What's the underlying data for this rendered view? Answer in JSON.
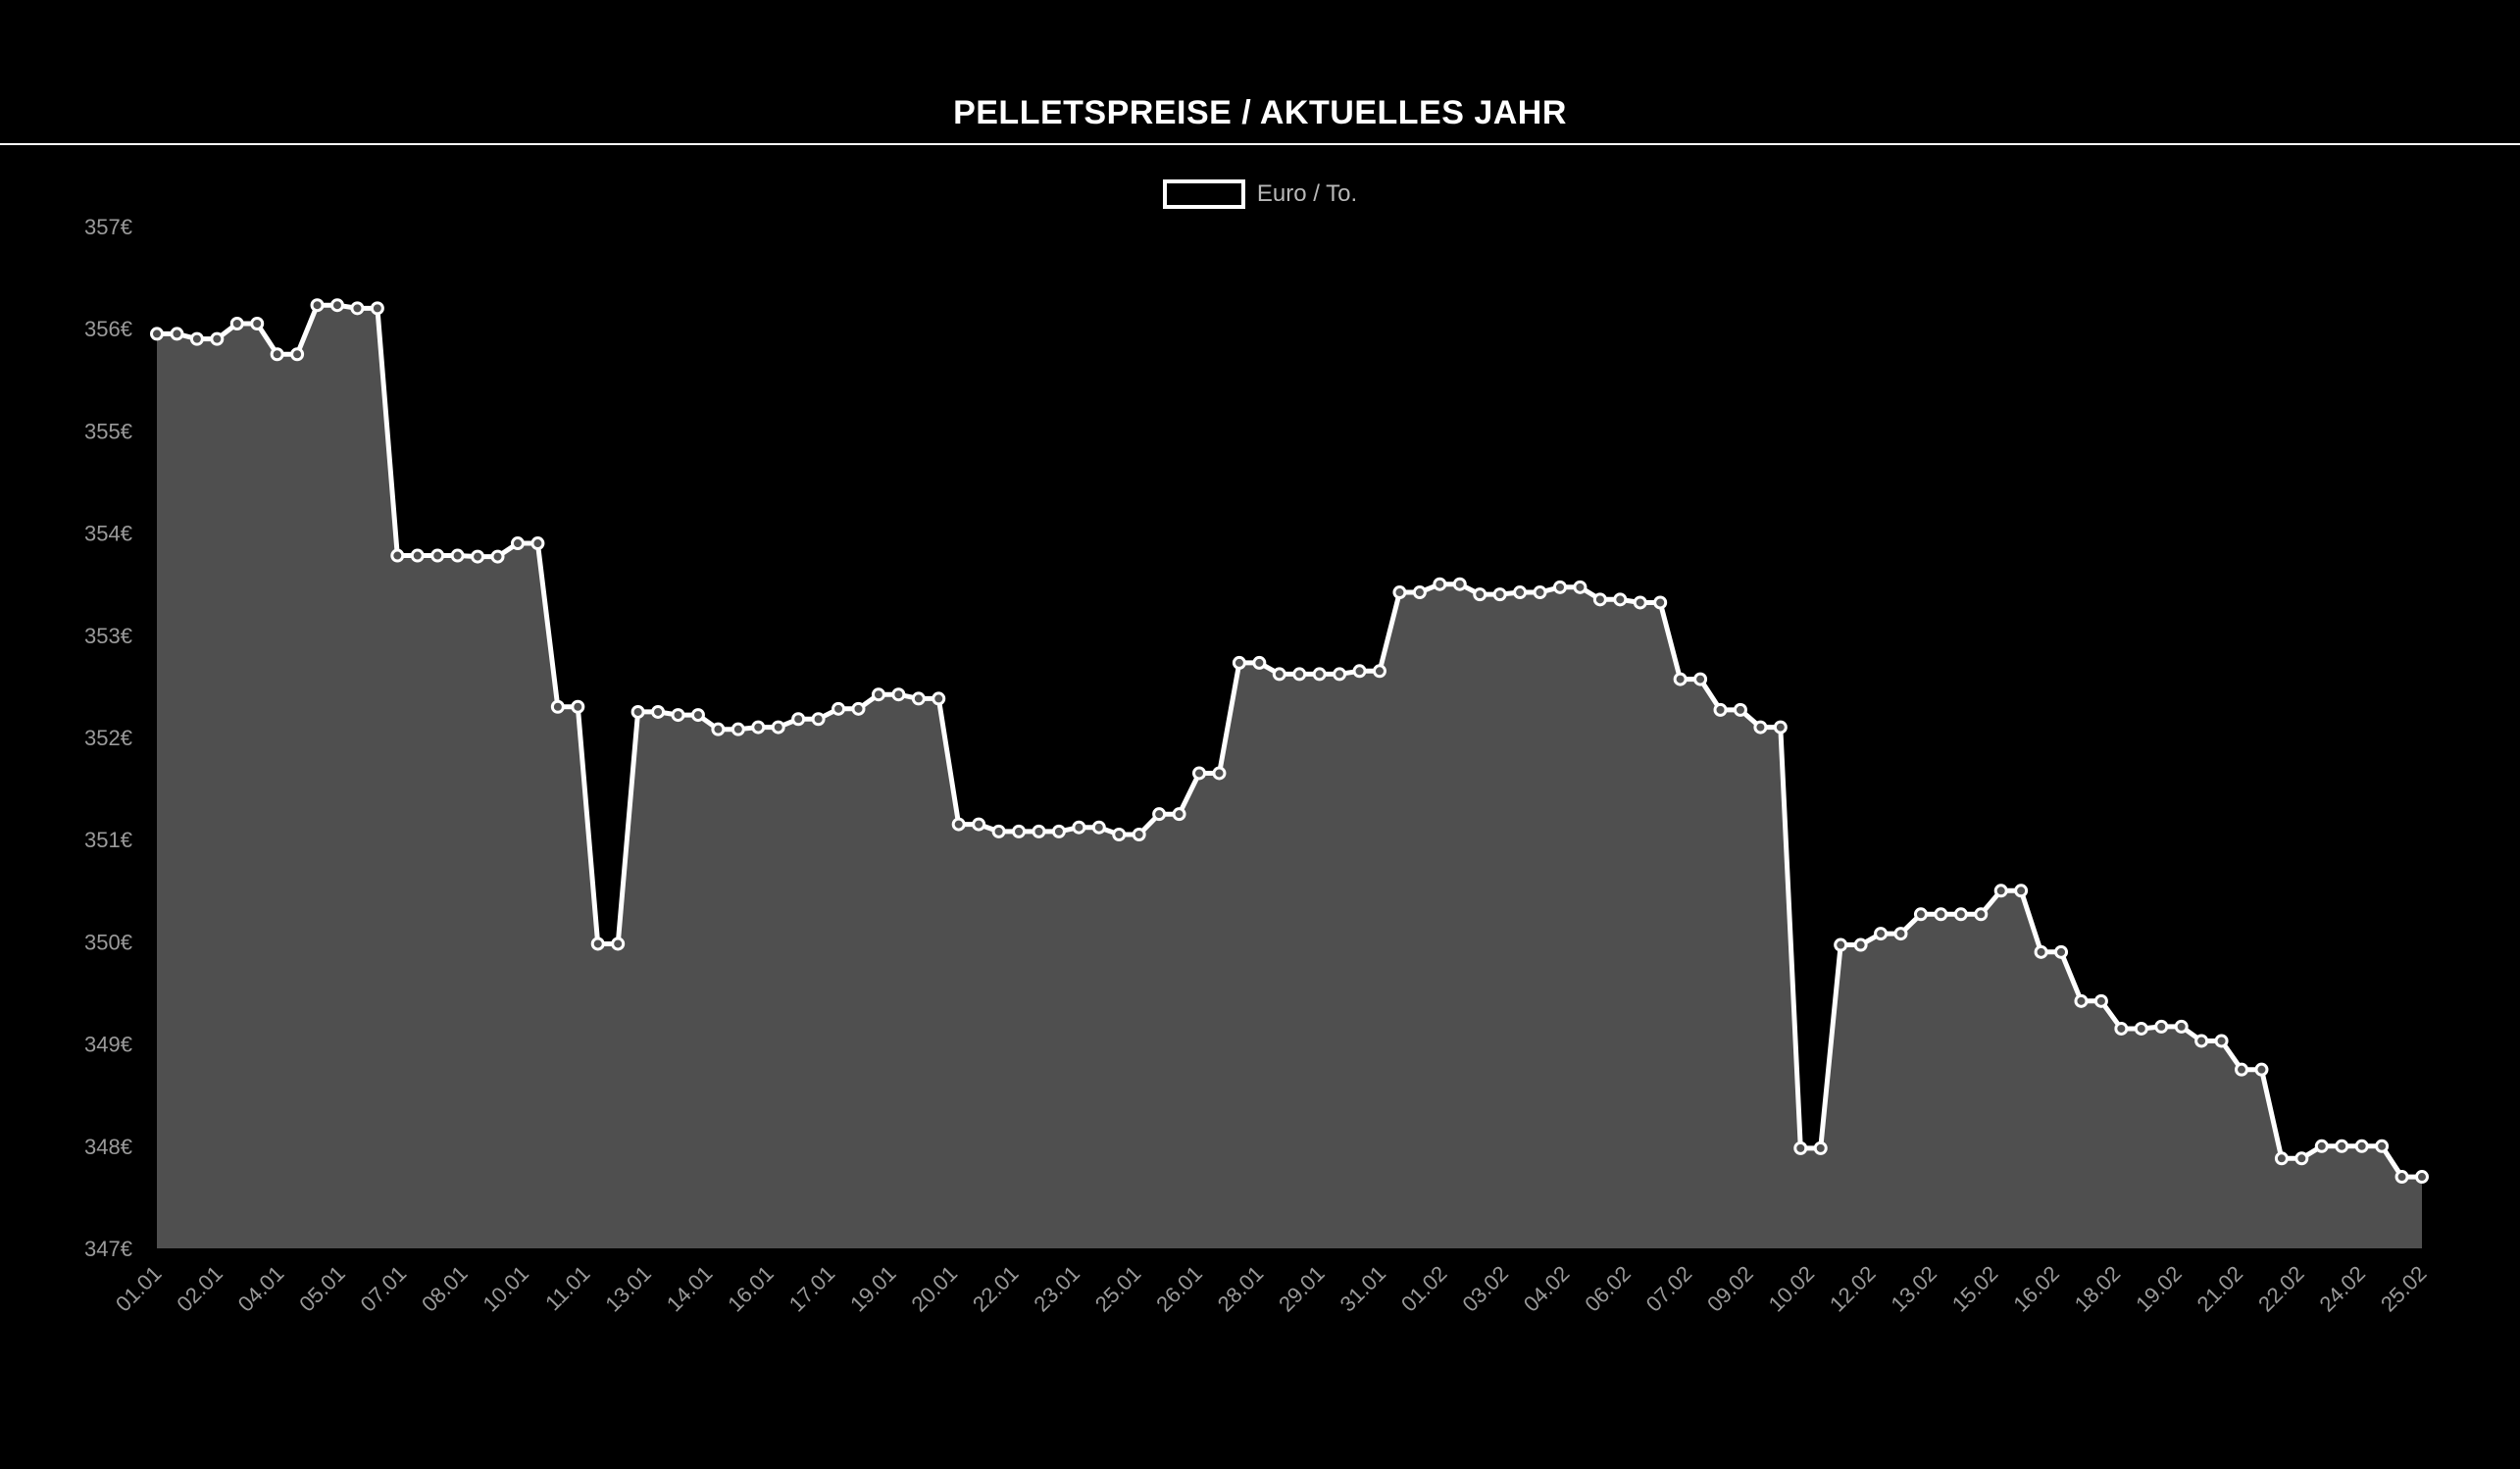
{
  "chart_data": {
    "type": "area",
    "title": "PELLETSPREISE / AKTUELLES JAHR",
    "legend": {
      "label": "Euro / To.",
      "position": "top-center"
    },
    "colors": {
      "fill": "#4f4f4f",
      "line": "#ffffff",
      "background": "#000000"
    },
    "ylim": [
      347,
      357
    ],
    "y_ticks": [
      "357€",
      "356€",
      "355€",
      "354€",
      "353€",
      "352€",
      "351€",
      "350€",
      "349€",
      "348€",
      "347€"
    ],
    "x_tick_labels": [
      "01.01",
      "02.01",
      "04.01",
      "05.01",
      "07.01",
      "08.01",
      "10.01",
      "11.01",
      "13.01",
      "14.01",
      "16.01",
      "17.01",
      "19.01",
      "20.01",
      "22.01",
      "23.01",
      "25.01",
      "26.01",
      "28.01",
      "29.01",
      "31.01",
      "01.02",
      "03.02",
      "04.02",
      "06.02",
      "07.02",
      "09.02",
      "10.02",
      "12.02",
      "13.02",
      "15.02",
      "16.02",
      "18.02",
      "19.02",
      "21.02",
      "22.02",
      "24.02",
      "25.02"
    ],
    "grid": false,
    "series": [
      {
        "name": "Euro / To.",
        "values": [
          355.95,
          355.95,
          355.9,
          355.9,
          356.05,
          356.05,
          355.75,
          355.75,
          356.23,
          356.23,
          356.2,
          356.2,
          353.78,
          353.78,
          353.78,
          353.78,
          353.77,
          353.77,
          353.9,
          353.9,
          352.3,
          352.3,
          349.98,
          349.98,
          352.25,
          352.25,
          352.22,
          352.22,
          352.08,
          352.08,
          352.1,
          352.1,
          352.18,
          352.18,
          352.28,
          352.28,
          352.42,
          352.42,
          352.38,
          352.38,
          351.15,
          351.15,
          351.08,
          351.08,
          351.08,
          351.08,
          351.12,
          351.12,
          351.05,
          351.05,
          351.25,
          351.25,
          351.65,
          351.65,
          352.73,
          352.73,
          352.62,
          352.62,
          352.62,
          352.62,
          352.65,
          352.65,
          353.42,
          353.42,
          353.5,
          353.5,
          353.4,
          353.4,
          353.42,
          353.42,
          353.47,
          353.47,
          353.35,
          353.35,
          353.32,
          353.32,
          352.57,
          352.57,
          352.27,
          352.27,
          352.1,
          352.1,
          347.98,
          347.98,
          349.97,
          349.97,
          350.08,
          350.08,
          350.27,
          350.27,
          350.27,
          350.27,
          350.5,
          350.5,
          349.9,
          349.9,
          349.42,
          349.42,
          349.15,
          349.15,
          349.17,
          349.17,
          349.03,
          349.03,
          348.75,
          348.75,
          347.88,
          347.88,
          348.0,
          348.0,
          348.0,
          348.0,
          347.7,
          347.7
        ]
      }
    ]
  }
}
